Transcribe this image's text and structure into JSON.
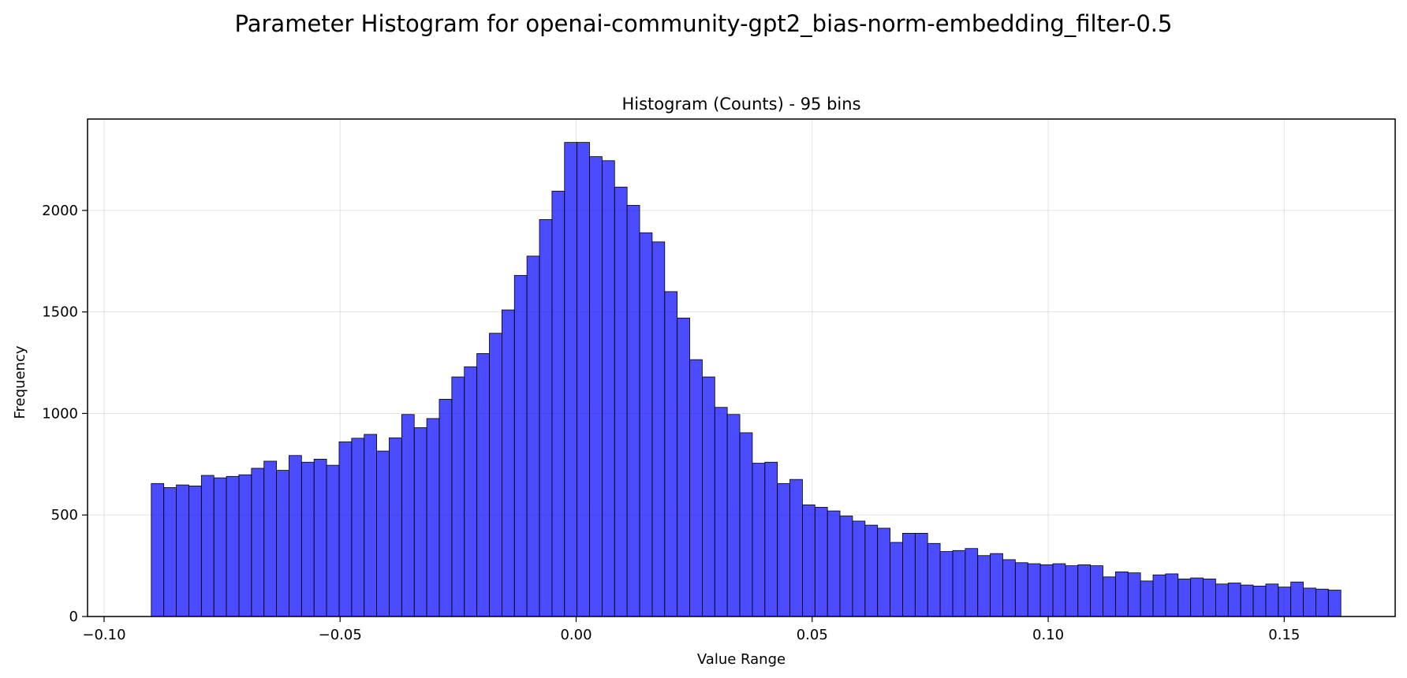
{
  "chart_data": {
    "type": "bar",
    "suptitle": "Parameter Histogram for openai-community-gpt2_bias-norm-embedding_filter-0.5",
    "title": "Histogram (Counts) - 95 bins",
    "xlabel": "Value Range",
    "ylabel": "Frequency",
    "xlim": [
      -0.1035,
      0.1735
    ],
    "ylim": [
      0,
      2450
    ],
    "grid": true,
    "bar_color": "#0000ff",
    "bar_alpha": 0.7,
    "edge_color": "#000000",
    "bins": {
      "start": -0.09,
      "end": 0.162,
      "count": 95
    },
    "values": [
      655,
      635,
      648,
      643,
      695,
      683,
      690,
      698,
      730,
      765,
      720,
      793,
      760,
      775,
      745,
      860,
      878,
      897,
      815,
      880,
      995,
      930,
      975,
      1070,
      1180,
      1230,
      1295,
      1395,
      1510,
      1680,
      1775,
      1955,
      2095,
      2335,
      2335,
      2265,
      2245,
      2115,
      2025,
      1890,
      1845,
      1600,
      1470,
      1265,
      1180,
      1030,
      995,
      905,
      755,
      760,
      655,
      675,
      550,
      538,
      520,
      495,
      470,
      450,
      435,
      365,
      410,
      410,
      360,
      320,
      325,
      335,
      300,
      310,
      280,
      265,
      260,
      255,
      260,
      250,
      255,
      250,
      195,
      220,
      215,
      175,
      205,
      210,
      185,
      190,
      185,
      160,
      165,
      155,
      150,
      160,
      145,
      170,
      140,
      135,
      130
    ],
    "xticks": [
      {
        "value": -0.1,
        "label": "−0.10"
      },
      {
        "value": -0.05,
        "label": "−0.05"
      },
      {
        "value": 0.0,
        "label": "0.00"
      },
      {
        "value": 0.05,
        "label": "0.05"
      },
      {
        "value": 0.1,
        "label": "0.10"
      },
      {
        "value": 0.15,
        "label": "0.15"
      }
    ],
    "yticks": [
      {
        "value": 0,
        "label": "0"
      },
      {
        "value": 500,
        "label": "500"
      },
      {
        "value": 1000,
        "label": "1000"
      },
      {
        "value": 1500,
        "label": "1500"
      },
      {
        "value": 2000,
        "label": "2000"
      }
    ]
  }
}
